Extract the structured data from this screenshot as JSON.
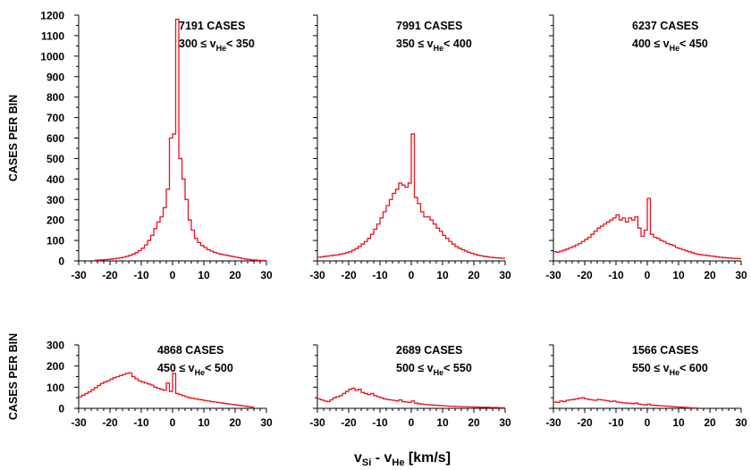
{
  "chart_data": [
    {
      "type": "histogram",
      "cases": "7191 CASES",
      "range_lhs": "300 ≤ v",
      "range_sub": "He",
      "range_rhs": "< 350",
      "ylabel": "CASES PER BIN",
      "xlim": [
        -30,
        30
      ],
      "ylim": [
        0,
        1200
      ],
      "xticks": [
        -30,
        -20,
        -10,
        0,
        10,
        20,
        30
      ],
      "yticks": [
        0,
        100,
        200,
        300,
        400,
        500,
        600,
        700,
        800,
        900,
        1000,
        1100,
        1200
      ],
      "bin_width": 1,
      "bins_start": -25,
      "values": [
        3,
        4,
        5,
        6,
        7,
        9,
        11,
        13,
        15,
        18,
        22,
        27,
        33,
        40,
        50,
        62,
        78,
        100,
        125,
        158,
        190,
        215,
        260,
        350,
        600,
        620,
        1180,
        500,
        400,
        300,
        200,
        150,
        110,
        90,
        75,
        65,
        55,
        48,
        42,
        37,
        33,
        30,
        27,
        24,
        21,
        18,
        15,
        12,
        9,
        7,
        5,
        4,
        3,
        2,
        2
      ]
    },
    {
      "type": "histogram",
      "cases": "7991 CASES",
      "range_lhs": "350 ≤ v",
      "range_sub": "He",
      "range_rhs": "< 400",
      "xlim": [
        -30,
        30
      ],
      "ylim": [
        0,
        1200
      ],
      "xticks": [
        -30,
        -20,
        -10,
        0,
        10,
        20,
        30
      ],
      "bin_width": 1,
      "bins_start": -30,
      "values": [
        18,
        20,
        22,
        24,
        26,
        28,
        30,
        33,
        36,
        40,
        45,
        52,
        60,
        70,
        82,
        95,
        110,
        130,
        155,
        180,
        210,
        240,
        270,
        300,
        330,
        350,
        380,
        370,
        360,
        380,
        620,
        310,
        280,
        240,
        215,
        215,
        200,
        180,
        160,
        145,
        125,
        110,
        95,
        82,
        70,
        62,
        55,
        48,
        42,
        37,
        32,
        28,
        25,
        22,
        20,
        18,
        16,
        15,
        14,
        13
      ]
    },
    {
      "type": "histogram",
      "cases": "6237 CASES",
      "range_lhs": "400 ≤ v",
      "range_sub": "He",
      "range_rhs": "< 450",
      "xlim": [
        -30,
        30
      ],
      "ylim": [
        0,
        1200
      ],
      "xticks": [
        -30,
        -20,
        -10,
        0,
        10,
        20,
        30
      ],
      "bin_width": 1,
      "bins_start": -30,
      "values": [
        45,
        42,
        48,
        52,
        58,
        65,
        70,
        78,
        85,
        95,
        105,
        115,
        130,
        145,
        160,
        170,
        180,
        190,
        200,
        210,
        225,
        200,
        210,
        190,
        210,
        200,
        215,
        160,
        120,
        150,
        305,
        130,
        115,
        110,
        100,
        95,
        85,
        80,
        75,
        65,
        60,
        55,
        50,
        45,
        40,
        35,
        32,
        30,
        28,
        26,
        24,
        22,
        20,
        18,
        16,
        15,
        14,
        13,
        12,
        11
      ]
    },
    {
      "type": "histogram",
      "cases": "4868 CASES",
      "range_lhs": "450 ≤ v",
      "range_sub": "He",
      "range_rhs": "< 500",
      "ylabel": "CASES PER BIN",
      "xlim": [
        -30,
        30
      ],
      "ylim": [
        0,
        300
      ],
      "xticks": [
        -30,
        -20,
        -10,
        0,
        10,
        20,
        30
      ],
      "yticks": [
        0,
        100,
        200,
        300
      ],
      "bin_width": 1,
      "bins_start": -30,
      "values": [
        55,
        62,
        70,
        78,
        88,
        98,
        108,
        118,
        125,
        130,
        138,
        145,
        150,
        155,
        160,
        165,
        168,
        150,
        140,
        130,
        125,
        120,
        115,
        110,
        100,
        95,
        90,
        85,
        120,
        80,
        165,
        70,
        65,
        60,
        55,
        50,
        48,
        45,
        42,
        40,
        37,
        35,
        32,
        30,
        28,
        26,
        24,
        22,
        20,
        18,
        16,
        14,
        12,
        10,
        8,
        6
      ]
    },
    {
      "type": "histogram",
      "cases": "2689 CASES",
      "range_lhs": "500 ≤ v",
      "range_sub": "He",
      "range_rhs": "< 550",
      "xlim": [
        -30,
        30
      ],
      "ylim": [
        0,
        300
      ],
      "xticks": [
        -30,
        -20,
        -10,
        0,
        10,
        20,
        30
      ],
      "bin_width": 1,
      "bins_start": -30,
      "values": [
        45,
        40,
        35,
        32,
        40,
        50,
        55,
        60,
        70,
        80,
        90,
        95,
        85,
        90,
        75,
        70,
        65,
        70,
        60,
        55,
        50,
        45,
        42,
        40,
        38,
        35,
        40,
        32,
        30,
        28,
        35,
        25,
        22,
        20,
        18,
        17,
        16,
        15,
        14,
        13,
        12,
        11,
        10,
        10,
        9,
        9,
        8,
        8,
        7,
        7,
        6,
        6,
        5,
        5,
        5,
        4,
        4,
        4,
        3,
        3
      ]
    },
    {
      "type": "histogram",
      "cases": "1566 CASES",
      "range_lhs": "550 ≤ v",
      "range_sub": "He",
      "range_rhs": "< 600",
      "xlim": [
        -30,
        30
      ],
      "ylim": [
        0,
        300
      ],
      "xticks": [
        -30,
        -20,
        -10,
        0,
        10,
        20,
        30
      ],
      "bin_width": 1,
      "bins_start": -30,
      "values": [
        30,
        28,
        35,
        32,
        38,
        40,
        42,
        45,
        48,
        50,
        45,
        42,
        40,
        38,
        42,
        40,
        38,
        35,
        32,
        35,
        30,
        28,
        26,
        25,
        24,
        22,
        25,
        20,
        18,
        16,
        20,
        15,
        14,
        13,
        12,
        11,
        10,
        9,
        8,
        7,
        6,
        5,
        4,
        3,
        2,
        2
      ]
    }
  ],
  "xlabel_main": "v",
  "xlabel_sub1": "Si",
  "xlabel_mid": " - v",
  "xlabel_sub2": "He",
  "xlabel_units": " [km/s]",
  "colors": {
    "line": "#e8141e",
    "axis": "#000000"
  }
}
